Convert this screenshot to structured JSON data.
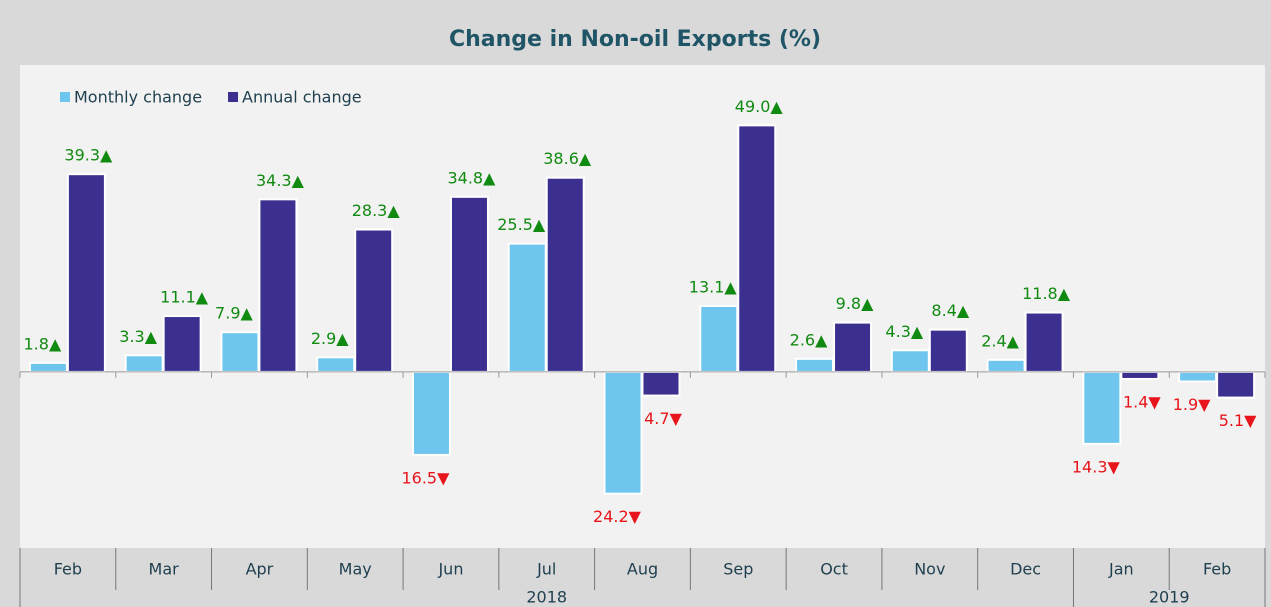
{
  "chart_data": {
    "type": "bar",
    "title": "Change in Non-oil Exports (%)",
    "categories": [
      "Feb",
      "Mar",
      "Apr",
      "May",
      "Jun",
      "Jul",
      "Aug",
      "Sep",
      "Oct",
      "Nov",
      "Dec",
      "Jan",
      "Feb"
    ],
    "years": [
      "2018",
      "2019"
    ],
    "series": [
      {
        "name": "Monthly change",
        "color": "#6ec6ee",
        "values": [
          1.8,
          3.3,
          7.9,
          2.9,
          -16.5,
          25.5,
          -24.2,
          13.1,
          2.6,
          4.3,
          2.4,
          -14.3,
          -1.9
        ],
        "value_labels": [
          "1.8▲",
          "3.3▲",
          "7.9▲",
          "2.9▲",
          "16.5▼",
          "25.5▲",
          "24.2▼",
          "13.1▲",
          "2.6▲",
          "4.3▲",
          "2.4▲",
          "14.3▼",
          "1.9▼"
        ]
      },
      {
        "name": "Annual change",
        "color": "#3b2f8f",
        "values": [
          39.3,
          11.1,
          34.3,
          28.3,
          34.8,
          38.6,
          -4.7,
          49.0,
          9.8,
          8.4,
          11.8,
          -1.4,
          -5.1
        ],
        "value_labels": [
          "39.3▲",
          "11.1▲",
          "34.3▲",
          "28.3▲",
          "34.8▲",
          "38.6▲",
          "4.7▼",
          "49.0▲",
          "9.8▲",
          "8.4▲",
          "11.8▲",
          "1.4▼",
          "5.1▼"
        ]
      }
    ],
    "ylim": [
      -35,
      61
    ],
    "legend": "top-left",
    "positive_color": "#118a11",
    "negative_color": "#e8141b"
  }
}
